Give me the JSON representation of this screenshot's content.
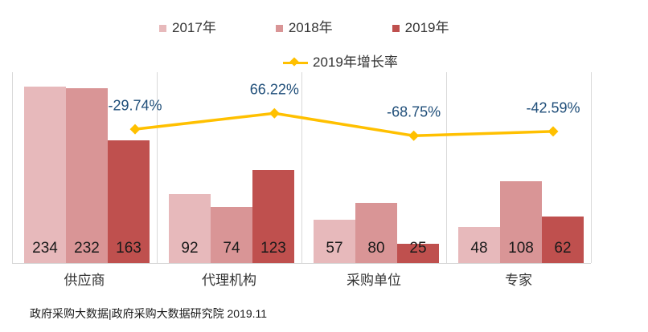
{
  "chart_data": {
    "type": "bar",
    "subtype": "grouped-bars-with-line-overlay",
    "title": "",
    "categories": [
      "供应商",
      "代理机构",
      "采购单位",
      "专家"
    ],
    "series": [
      {
        "name": "2017年",
        "color": "#e7b9bb",
        "values": [
          234,
          92,
          57,
          48
        ]
      },
      {
        "name": "2018年",
        "color": "#d99596",
        "values": [
          232,
          74,
          80,
          108
        ]
      },
      {
        "name": "2019年",
        "color": "#bf504e",
        "values": [
          163,
          123,
          25,
          62
        ]
      }
    ],
    "line_series": {
      "name": "2019年增长率",
      "color": "#ffc000",
      "values": [
        -29.74,
        66.22,
        -68.75,
        -42.59
      ],
      "labels": [
        "-29.74%",
        "66.22%",
        "-68.75%",
        "-42.59%"
      ],
      "label_color": "#1f4e79"
    },
    "ylim": [
      0,
      250
    ],
    "grid": "vertical-category-separators",
    "gridline_color": "#d9d9d9",
    "legend_position": "top",
    "value_labels": "inside-base-of-bars"
  },
  "footer": {
    "source_text": "政府采购大数据|政府采购大数据研究院 2019.11"
  }
}
